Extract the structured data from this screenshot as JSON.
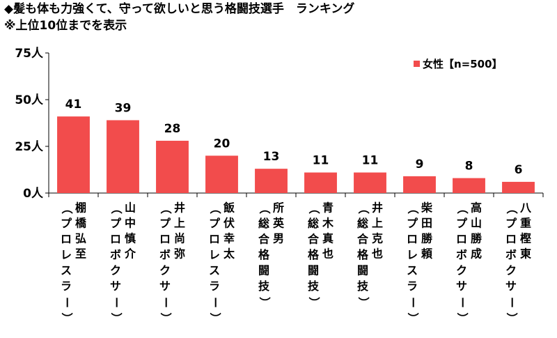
{
  "title_line1": "◆髪も体も力強くて、守って欲しいと思う格闘技選手　ランキング",
  "title_line2": "※上位10位までを表示",
  "colors": {
    "bar": "#f24c4c",
    "axis": "#000000"
  },
  "chart_data": {
    "type": "bar",
    "categories": [
      [
        "棚橋弘至",
        "（プロレスラー）"
      ],
      [
        "山中慎介",
        "（プロボクサー）"
      ],
      [
        "井上尚弥",
        "（プロボクサー）"
      ],
      [
        "飯伏幸太",
        "（プロレスラー）"
      ],
      [
        "所英男",
        "（総合格闘技）"
      ],
      [
        "青木真也",
        "（総合格闘技）"
      ],
      [
        "井上克也",
        "（総合格闘技）"
      ],
      [
        "柴田勝頼",
        "（プロレスラー）"
      ],
      [
        "高山勝成",
        "（プロボクサー）"
      ],
      [
        "八重樫東",
        "（プロボクサー）"
      ]
    ],
    "series": [
      {
        "name": "女性【n=500】",
        "values": [
          41,
          39,
          28,
          20,
          13,
          11,
          11,
          9,
          8,
          6
        ]
      }
    ],
    "ylim": [
      0,
      75
    ],
    "yticks": [
      0,
      25,
      50,
      75
    ],
    "ytick_labels": [
      "0人",
      "25人",
      "50人",
      "75人"
    ],
    "legend_position": "top-right",
    "grid": false
  }
}
